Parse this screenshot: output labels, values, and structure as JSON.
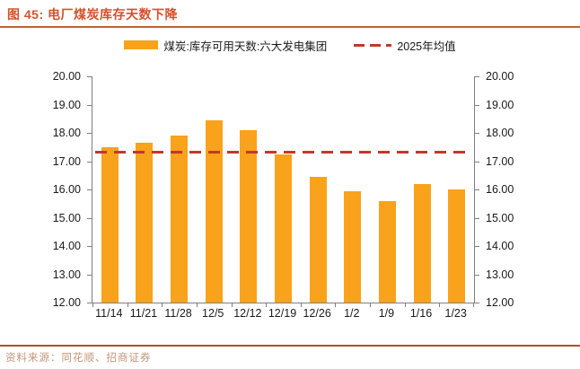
{
  "header": {
    "title": "图 45: 电厂煤炭库存天数下降"
  },
  "footer": {
    "source": "资料来源：同花顺、招商证券"
  },
  "colors": {
    "bar": "#F9A21B",
    "mean_line": "#C0392B",
    "title_text": "#D6512A",
    "title_rule": "#C3602F",
    "footer_rule": "#AD5222",
    "source_text": "#C29578",
    "axis": "#7F7F7F"
  },
  "chart_data": {
    "type": "bar",
    "title": "图 45: 电厂煤炭库存天数下降",
    "categories": [
      "11/14",
      "11/21",
      "11/28",
      "12/5",
      "12/12",
      "12/19",
      "12/26",
      "1/2",
      "1/9",
      "1/16",
      "1/23"
    ],
    "series": [
      {
        "name": "煤炭:库存可用天数:六大发电集团",
        "values": [
          17.5,
          17.65,
          17.9,
          18.45,
          18.1,
          17.25,
          16.45,
          15.95,
          15.6,
          16.2,
          16.0
        ]
      }
    ],
    "mean_line": {
      "label": "2025年均值",
      "value": 17.33
    },
    "ylim": [
      12,
      20
    ],
    "y_ticks": [
      20,
      19,
      18,
      17,
      16,
      15,
      14,
      13,
      12
    ],
    "y_tick_format": "0.00",
    "grid": false,
    "legend_position": "top",
    "xlabel": "",
    "ylabel": ""
  }
}
